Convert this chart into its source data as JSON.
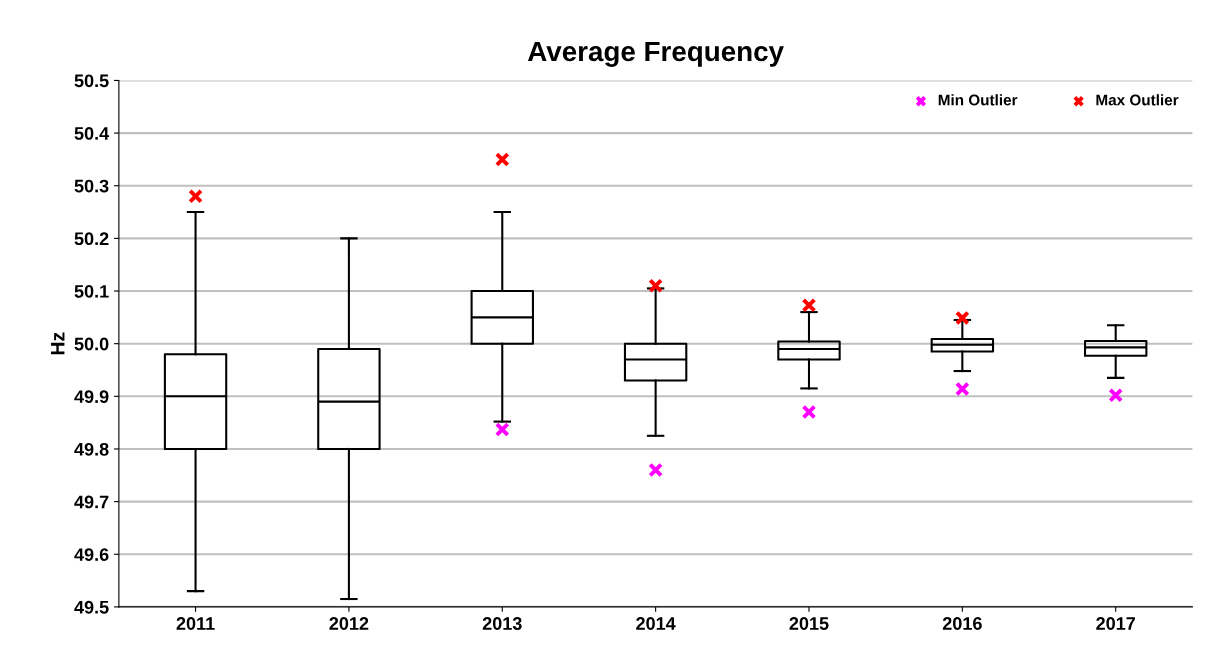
{
  "chart_data": {
    "type": "box",
    "title": "Average Frequency",
    "ylabel": "Hz",
    "categories": [
      "2011",
      "2012",
      "2013",
      "2014",
      "2015",
      "2016",
      "2017"
    ],
    "boxes": [
      {
        "low": 49.53,
        "q1": 49.8,
        "median": 49.9,
        "q3": 49.98,
        "high": 50.25
      },
      {
        "low": 49.515,
        "q1": 49.8,
        "median": 49.89,
        "q3": 49.99,
        "high": 50.2
      },
      {
        "low": 49.852,
        "q1": 50.0,
        "median": 50.05,
        "q3": 50.1,
        "high": 50.25
      },
      {
        "low": 49.825,
        "q1": 49.93,
        "median": 49.97,
        "q3": 50.0,
        "high": 50.105
      },
      {
        "low": 49.915,
        "q1": 49.97,
        "median": 49.99,
        "q3": 50.004,
        "high": 50.06
      },
      {
        "low": 49.948,
        "q1": 49.985,
        "median": 49.998,
        "q3": 50.009,
        "high": 50.045
      },
      {
        "low": 49.935,
        "q1": 49.977,
        "median": 49.993,
        "q3": 50.005,
        "high": 50.035
      }
    ],
    "series": [
      {
        "name": "Min Outlier",
        "type": "scatter",
        "color": "#ff00ff",
        "values": [
          null,
          null,
          49.837,
          49.76,
          49.87,
          49.914,
          49.902
        ]
      },
      {
        "name": "Max Outlier",
        "type": "scatter",
        "color": "#ff0000",
        "values": [
          50.28,
          null,
          50.35,
          50.11,
          50.073,
          50.049,
          null
        ]
      }
    ],
    "ylim": [
      49.5,
      50.5
    ],
    "yticks": [
      {
        "value": 49.5,
        "label": "49.5"
      },
      {
        "value": 49.6,
        "label": "49.6"
      },
      {
        "value": 49.7,
        "label": "49.7"
      },
      {
        "value": 49.8,
        "label": "49.8"
      },
      {
        "value": 49.9,
        "label": "49.9"
      },
      {
        "value": 50.0,
        "label": "50.0"
      },
      {
        "value": 50.1,
        "label": "50.1"
      },
      {
        "value": 50.2,
        "label": "50.2"
      },
      {
        "value": 50.3,
        "label": "50.3"
      },
      {
        "value": 50.4,
        "label": "50.4"
      },
      {
        "value": 50.5,
        "label": "50.5"
      }
    ],
    "grid": "y",
    "legend": "top right",
    "marker": "cross"
  }
}
